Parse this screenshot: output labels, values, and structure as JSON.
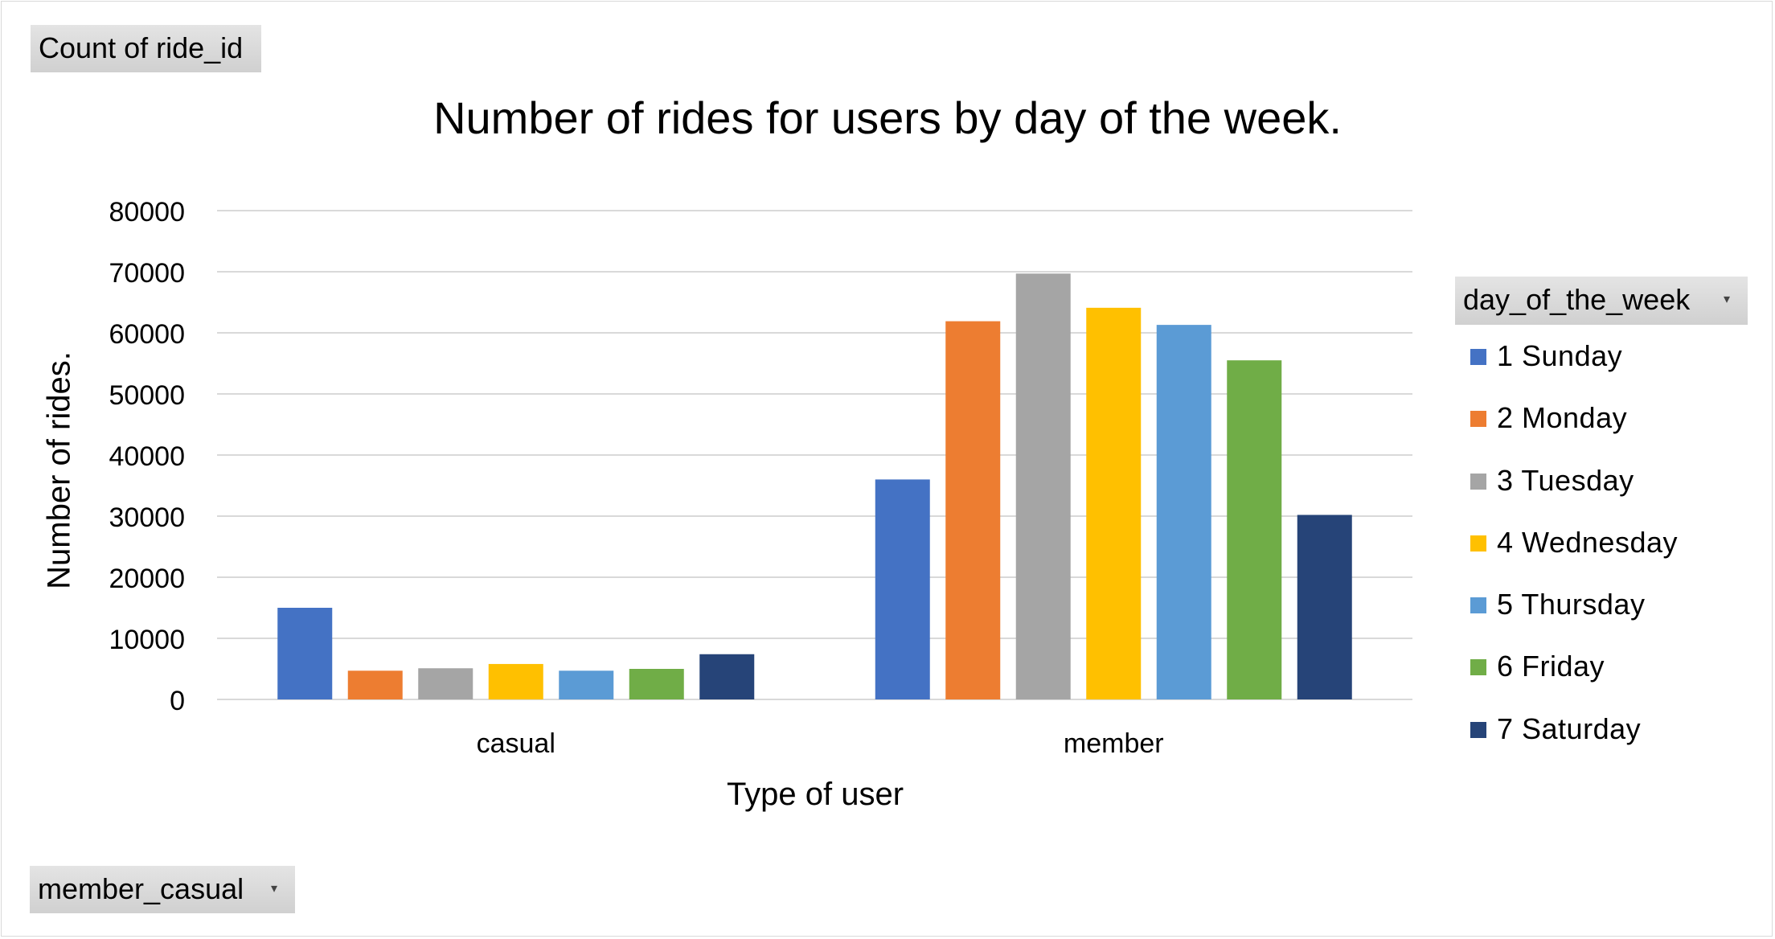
{
  "field_buttons": {
    "value": "Count of ride_id",
    "rows": "member_casual",
    "legend": "day_of_the_week",
    "dropdown_arrow": "▾"
  },
  "chart_data": {
    "type": "bar",
    "title": "Number of rides for users by day of the week.",
    "xlabel": "Type of user",
    "ylabel": "Number of rides.",
    "ylim": [
      0,
      80000
    ],
    "yticks": [
      0,
      10000,
      20000,
      30000,
      40000,
      50000,
      60000,
      70000,
      80000
    ],
    "grid": true,
    "legend_position": "right",
    "categories": [
      "casual",
      "member"
    ],
    "series": [
      {
        "name": "1  Sunday",
        "color": "#4472c4",
        "values": [
          15000,
          36000
        ]
      },
      {
        "name": "2  Monday",
        "color": "#ed7d31",
        "values": [
          4700,
          61900
        ]
      },
      {
        "name": "3  Tuesday",
        "color": "#a5a5a5",
        "values": [
          5100,
          69700
        ]
      },
      {
        "name": "4  Wednesday",
        "color": "#ffc000",
        "values": [
          5800,
          64100
        ]
      },
      {
        "name": "5  Thursday",
        "color": "#5b9bd5",
        "values": [
          4700,
          61300
        ]
      },
      {
        "name": "6  Friday",
        "color": "#70ad47",
        "values": [
          5000,
          55500
        ]
      },
      {
        "name": "7  Saturday",
        "color": "#264478",
        "values": [
          7400,
          30200
        ]
      }
    ]
  }
}
